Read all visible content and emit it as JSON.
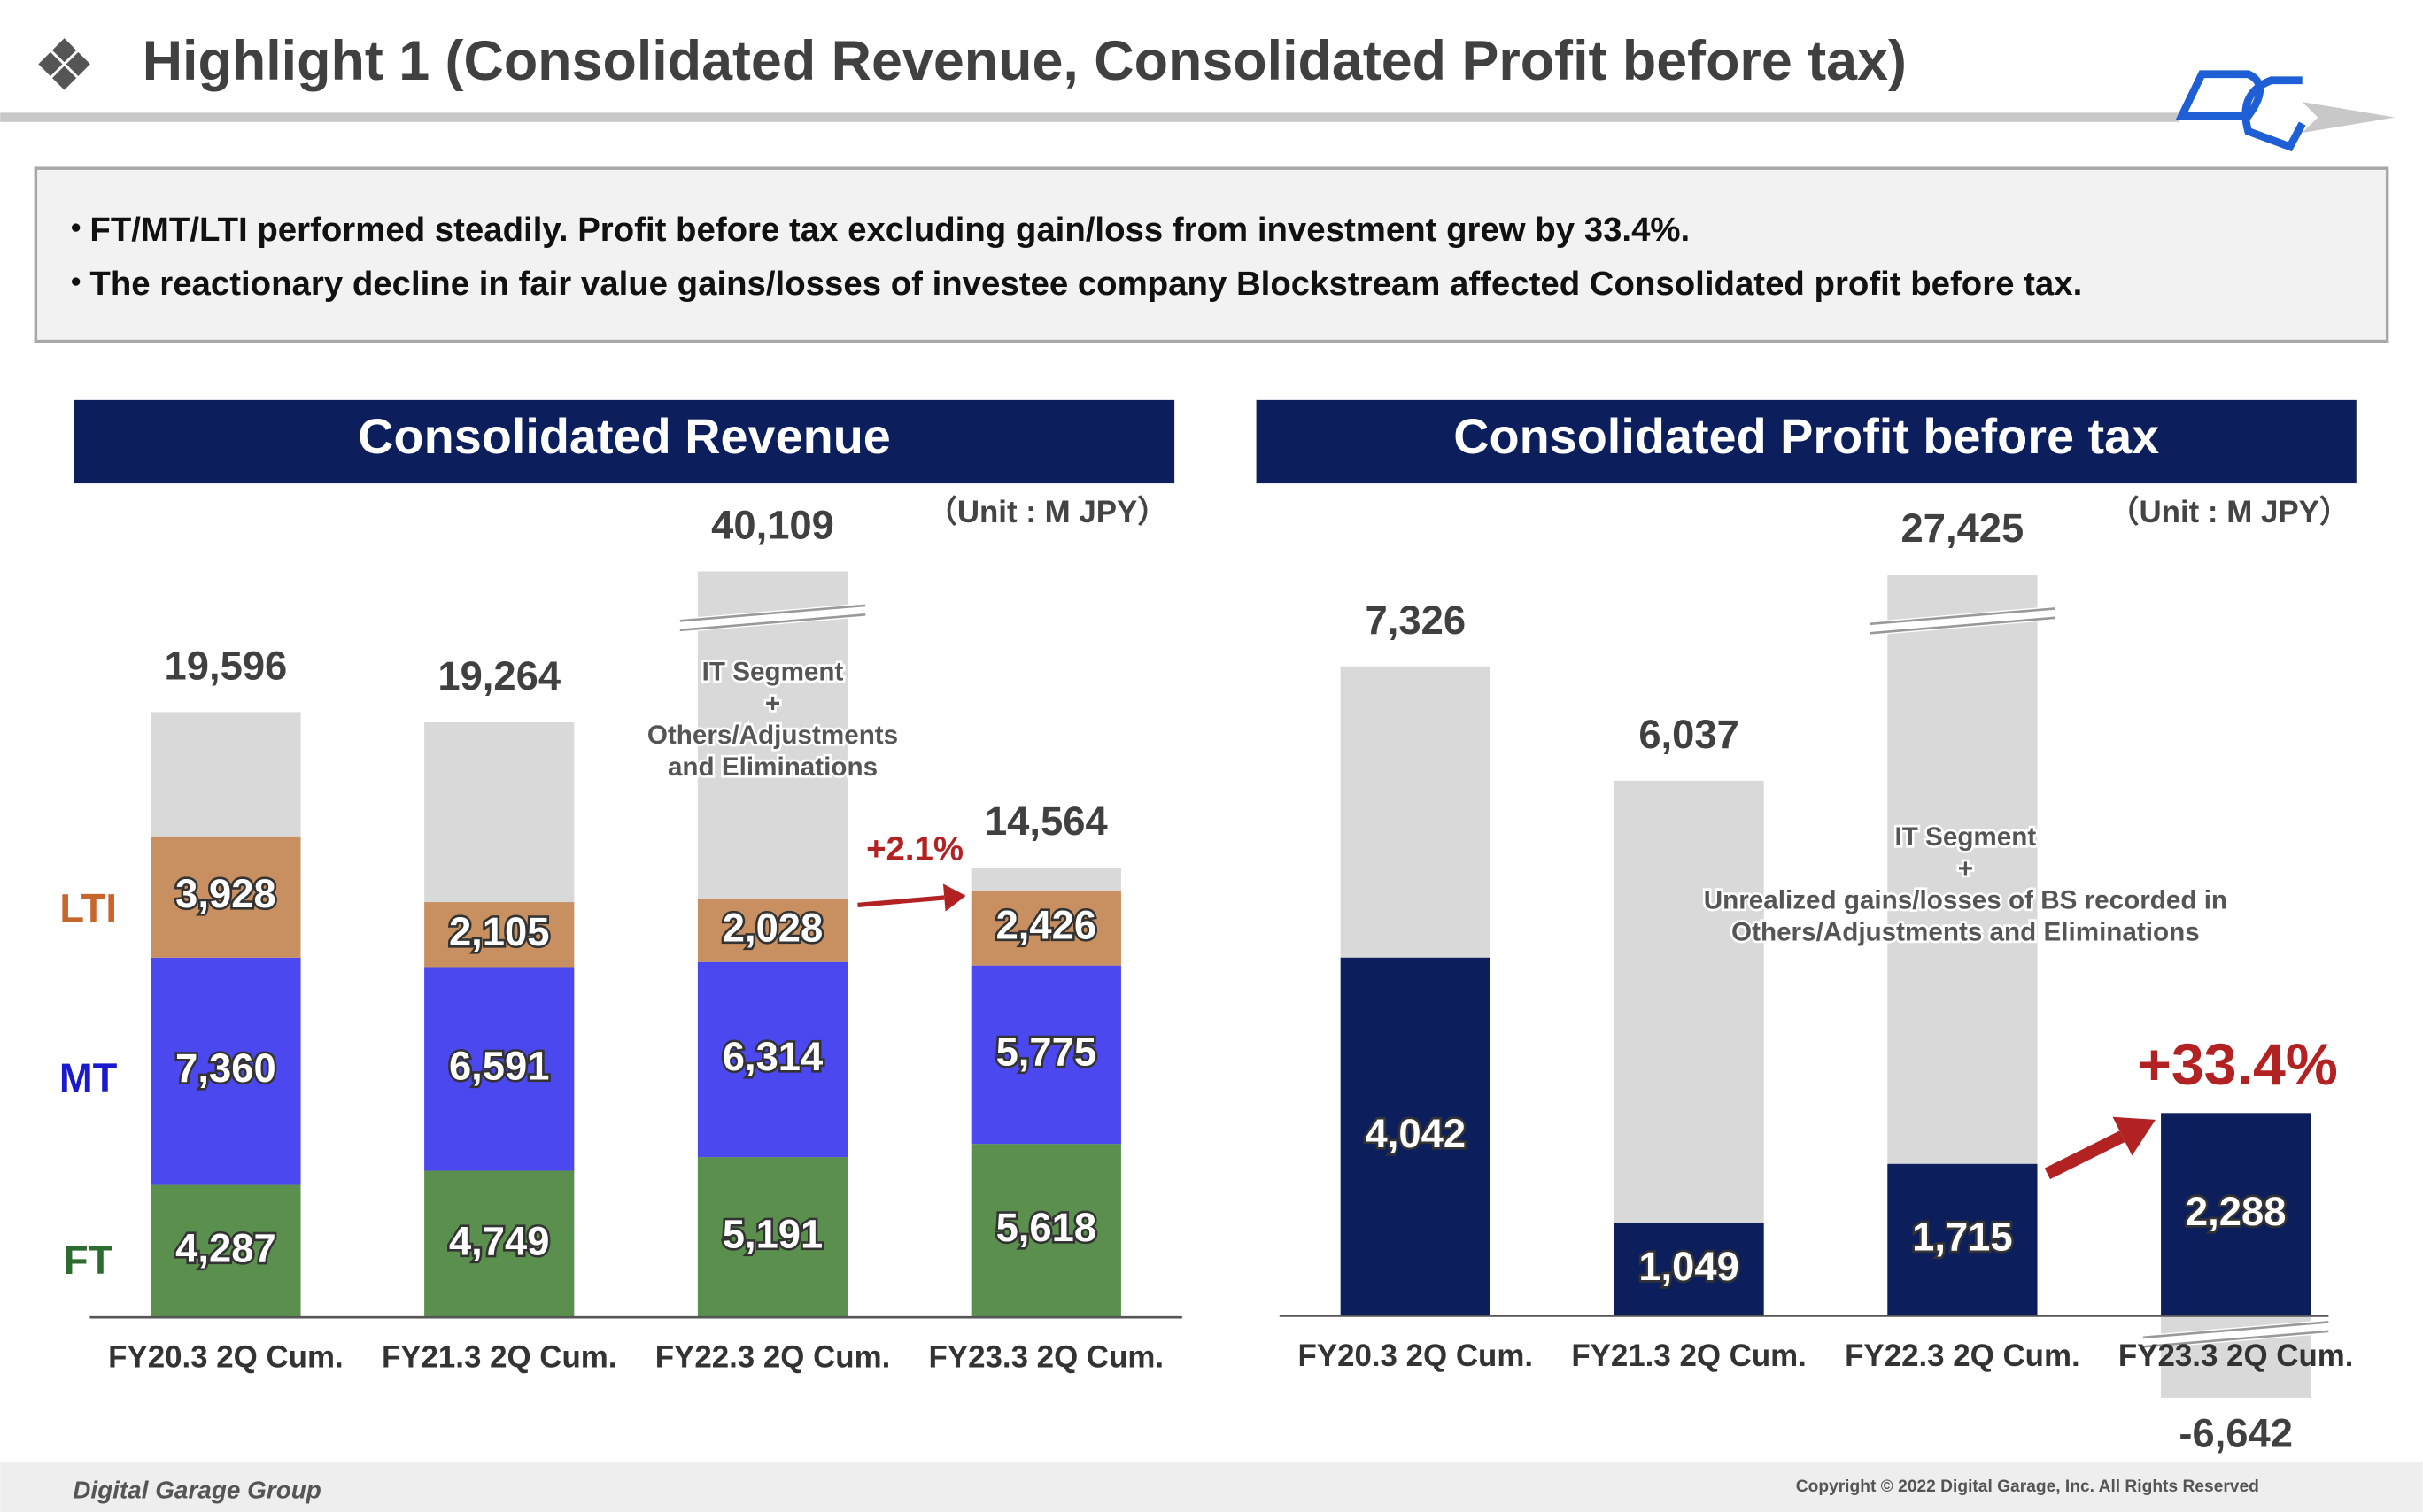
{
  "header": {
    "title": "Highlight 1 (Consolidated Revenue, Consolidated Profit before tax)"
  },
  "bullets": [
    "FT/MT/LTI performed steadily. Profit before tax excluding gain/loss from investment grew by 33.4%.",
    "The reactionary decline in fair value gains/losses of investee company Blockstream affected Consolidated profit before tax."
  ],
  "chart_data": [
    {
      "type": "stacked-bar",
      "title": "Consolidated Revenue",
      "unit": "（Unit : M JPY）",
      "categories": [
        "FY20.3 2Q Cum.",
        "FY21.3 2Q Cum.",
        "FY22.3 2Q Cum.",
        "FY23.3 2Q Cum."
      ],
      "series": [
        {
          "name": "FT",
          "color": "#5a8f4e",
          "values": [
            4287,
            4749,
            5191,
            5618
          ],
          "value_labels": [
            "4,287",
            "4,749",
            "5,191",
            "5,618"
          ]
        },
        {
          "name": "MT",
          "color": "#4b48f0",
          "values": [
            7360,
            6591,
            6314,
            5775
          ],
          "value_labels": [
            "7,360",
            "6,591",
            "6,314",
            "5,775"
          ]
        },
        {
          "name": "LTI",
          "color": "#c89060",
          "values": [
            3928,
            2105,
            2028,
            2426
          ],
          "value_labels": [
            "3,928",
            "2,105",
            "2,028",
            "2,426"
          ]
        },
        {
          "color": "#d9d9d9",
          "values": [
            4021,
            5819,
            26576,
            745
          ]
        }
      ],
      "totals": [
        19596,
        19264,
        40109,
        14564
      ],
      "total_labels": [
        "19,596",
        "19,264",
        "40,109",
        "14,564"
      ],
      "annotation": [
        "IT Segment",
        "+",
        "Others/Adjustments",
        "and Eliminations"
      ],
      "growth_label": "+2.1%"
    },
    {
      "type": "stacked-bar",
      "title": "Consolidated Profit before tax",
      "unit": "（Unit : M JPY）",
      "categories": [
        "FY20.3 2Q Cum.",
        "FY21.3 2Q Cum.",
        "FY22.3 2Q Cum.",
        "FY23.3 2Q Cum."
      ],
      "series": [
        {
          "color": "#0c1f5c",
          "values": [
            4042,
            1049,
            1715,
            2288
          ],
          "value_labels": [
            "4,042",
            "1,049",
            "1,715",
            "2,288"
          ]
        },
        {
          "color": "#d9d9d9",
          "values": [
            3284,
            4988,
            25710,
            -6642
          ],
          "value_labels": [
            null,
            null,
            null,
            "-6,642"
          ]
        }
      ],
      "totals": [
        7326,
        6037,
        27425,
        null
      ],
      "total_labels": [
        "7,326",
        "6,037",
        "27,425",
        null
      ],
      "annotation": [
        "IT Segment",
        "+",
        "Unrealized gains/losses of BS recorded in",
        "Others/Adjustments and Eliminations"
      ],
      "growth_label": "+33.4%"
    }
  ],
  "footer": {
    "company": "Digital Garage Group",
    "copyright": "Copyright © 2022 Digital Garage, Inc. All Rights Reserved"
  }
}
